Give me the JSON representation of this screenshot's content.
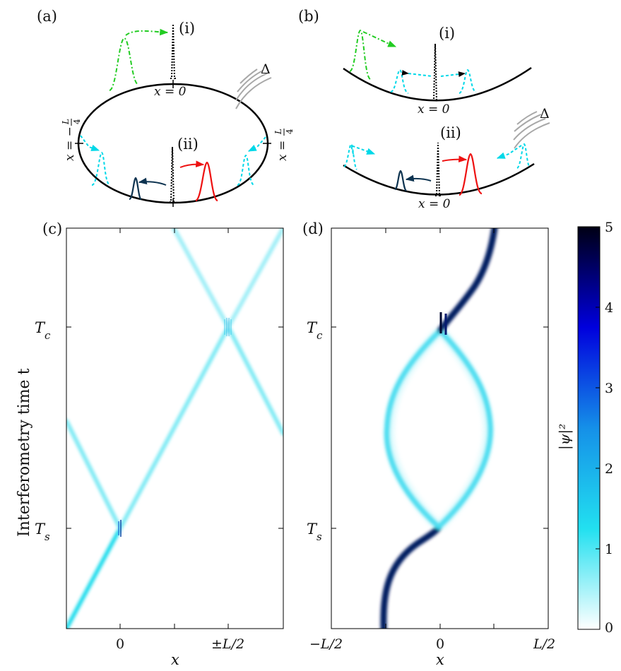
{
  "panels": {
    "a": {
      "label": "(a)",
      "sub_i": "(i)",
      "sub_ii": "(ii)",
      "x_zero": "x = 0",
      "x_neg": "x = −",
      "x_pos": "x = ",
      "frac_num": "L",
      "frac_den": "4",
      "delta": "Δ"
    },
    "b": {
      "label": "(b)",
      "sub_i": "(i)",
      "sub_ii": "(ii)",
      "x_zero_i": "x = 0",
      "x_zero_ii": "x = 0",
      "delta": "Δ"
    },
    "c": {
      "label": "(c)",
      "xlabel": "x",
      "xticks": [
        "0",
        "±L/2"
      ],
      "ylabel": "Interferometry time t",
      "yticks": [
        "T_c",
        "T_s"
      ]
    },
    "d": {
      "label": "(d)",
      "xlabel": "x",
      "xticks": [
        "−L/2",
        "0",
        "L/2"
      ],
      "yticks": [
        "T_c",
        "T_s"
      ]
    }
  },
  "colorbar": {
    "label": "|ψ|²",
    "ticks": [
      "0",
      "1",
      "2",
      "3",
      "4",
      "5"
    ],
    "min": 0,
    "max": 5,
    "colors": [
      "#ffffff",
      "#22e0f0",
      "#1590e8",
      "#0000dd",
      "#000014"
    ]
  },
  "colors": {
    "green": "#22cc22",
    "cyan": "#00d8e8",
    "red": "#ee1111",
    "navy": "#0d3350",
    "black": "#000000",
    "gray": "#a8a8a8"
  }
}
